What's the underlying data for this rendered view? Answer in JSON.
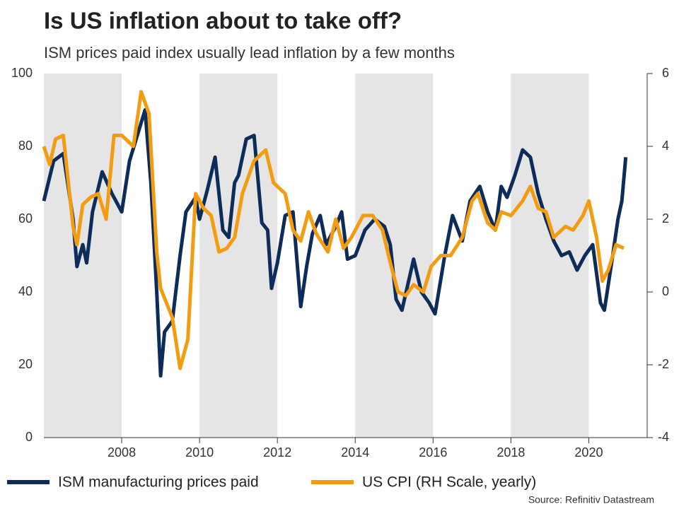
{
  "chart_data": {
    "type": "line",
    "title": "Is US inflation about to take off?",
    "subtitle": "ISM prices paid index usually lead inflation by a few months",
    "source": "Source: Refinitiv Datastream",
    "xlim": [
      2006,
      2021.5
    ],
    "xticks": [
      2008,
      2010,
      2012,
      2014,
      2016,
      2018,
      2020
    ],
    "ylim": [
      0,
      100
    ],
    "yticks": [
      0,
      20,
      40,
      60,
      80,
      100
    ],
    "y2lim": [
      -4,
      6
    ],
    "y2ticks": [
      -4,
      -2,
      0,
      2,
      4,
      6
    ],
    "shaded_bands": true,
    "series": [
      {
        "name": "ISM manufacturing prices paid",
        "color": "#0d2c5a",
        "x": [
          2006.0,
          2006.25,
          2006.5,
          2006.75,
          2006.85,
          2007.0,
          2007.1,
          2007.25,
          2007.5,
          2007.75,
          2008.0,
          2008.2,
          2008.4,
          2008.6,
          2008.75,
          2008.9,
          2009.0,
          2009.1,
          2009.3,
          2009.5,
          2009.65,
          2009.9,
          2010.0,
          2010.2,
          2010.4,
          2010.6,
          2010.75,
          2010.9,
          2011.0,
          2011.2,
          2011.4,
          2011.6,
          2011.75,
          2011.85,
          2012.0,
          2012.2,
          2012.4,
          2012.6,
          2012.75,
          2012.9,
          2013.1,
          2013.25,
          2013.5,
          2013.65,
          2013.8,
          2014.0,
          2014.25,
          2014.5,
          2014.75,
          2014.9,
          2015.05,
          2015.2,
          2015.5,
          2015.7,
          2015.9,
          2016.05,
          2016.3,
          2016.5,
          2016.75,
          2016.95,
          2017.2,
          2017.4,
          2017.6,
          2017.75,
          2017.9,
          2018.1,
          2018.3,
          2018.5,
          2018.7,
          2018.9,
          2019.1,
          2019.3,
          2019.5,
          2019.7,
          2019.9,
          2020.1,
          2020.3,
          2020.4,
          2020.6,
          2020.75,
          2020.85,
          2020.95
        ],
        "values": [
          65,
          76,
          78,
          60,
          47,
          53,
          48,
          62,
          73,
          67,
          62,
          76,
          83,
          90,
          70,
          40,
          17,
          29,
          32,
          50,
          62,
          66,
          60,
          68,
          77,
          57,
          55,
          70,
          72,
          82,
          83,
          59,
          57,
          41,
          48,
          61,
          62,
          36,
          47,
          56,
          61,
          53,
          58,
          62,
          49,
          50,
          57,
          60,
          58,
          53,
          38,
          35,
          49,
          40,
          37,
          34,
          50,
          61,
          54,
          65,
          69,
          62,
          57,
          69,
          66,
          72,
          79,
          77,
          67,
          60,
          54,
          50,
          51,
          46,
          50,
          53,
          37,
          35,
          49,
          60,
          65,
          77
        ]
      },
      {
        "name": "US CPI (RH Scale, yearly)",
        "color": "#f39c12",
        "axis": "y2",
        "x": [
          2006.0,
          2006.15,
          2006.3,
          2006.5,
          2006.75,
          2006.85,
          2007.0,
          2007.2,
          2007.4,
          2007.6,
          2007.8,
          2008.0,
          2008.3,
          2008.5,
          2008.7,
          2008.9,
          2009.0,
          2009.3,
          2009.5,
          2009.7,
          2009.9,
          2010.1,
          2010.3,
          2010.5,
          2010.7,
          2010.9,
          2011.1,
          2011.4,
          2011.7,
          2011.9,
          2012.2,
          2012.4,
          2012.6,
          2012.8,
          2013.0,
          2013.3,
          2013.5,
          2013.7,
          2013.9,
          2014.2,
          2014.45,
          2014.7,
          2014.9,
          2015.1,
          2015.3,
          2015.5,
          2015.75,
          2015.95,
          2016.2,
          2016.45,
          2016.75,
          2017.0,
          2017.15,
          2017.4,
          2017.6,
          2017.75,
          2018.0,
          2018.3,
          2018.5,
          2018.7,
          2018.9,
          2019.1,
          2019.4,
          2019.6,
          2019.85,
          2020.0,
          2020.2,
          2020.35,
          2020.5,
          2020.7,
          2020.9
        ],
        "values": [
          4.0,
          3.5,
          4.2,
          4.3,
          1.8,
          1.3,
          2.4,
          2.6,
          2.7,
          2.0,
          4.3,
          4.3,
          4.0,
          5.5,
          4.9,
          1.1,
          0.1,
          -0.7,
          -2.1,
          -1.3,
          2.7,
          2.3,
          2.1,
          1.1,
          1.2,
          1.5,
          2.7,
          3.6,
          3.9,
          3.0,
          2.7,
          1.7,
          1.4,
          2.2,
          1.6,
          1.1,
          2.0,
          1.2,
          1.5,
          2.1,
          2.1,
          1.7,
          0.8,
          0.0,
          -0.1,
          0.2,
          0.0,
          0.7,
          1.0,
          1.0,
          1.5,
          2.5,
          2.7,
          1.9,
          1.7,
          2.2,
          2.1,
          2.5,
          2.9,
          2.3,
          2.2,
          1.5,
          1.8,
          1.7,
          2.1,
          2.5,
          1.5,
          0.3,
          0.6,
          1.3,
          1.2
        ]
      }
    ]
  }
}
